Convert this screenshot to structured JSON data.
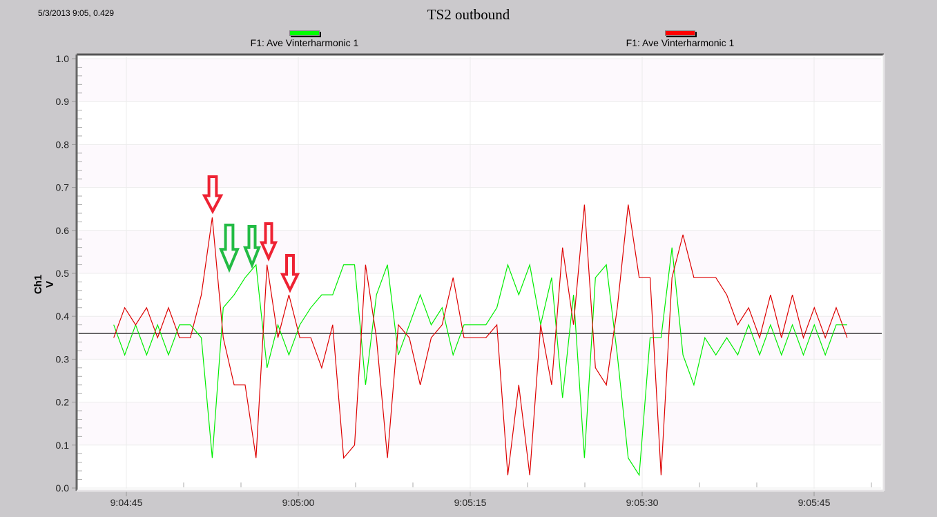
{
  "cursor_readout": "5/3/2013 9:05, 0.429",
  "title": "TS2 outbound",
  "legend": [
    {
      "label": "F1: Ave Vinterharmonic 1",
      "color": "#00ff00"
    },
    {
      "label": "F1: Ave Vinterharmonic 1",
      "color": "#ff0000"
    }
  ],
  "ylabel": "Ch1 V",
  "colors": {
    "background": "#cbc9cc",
    "plot_bg_a": "#ffffff",
    "plot_bg_b": "#fdf9fd",
    "green": "#00ee00",
    "red": "#dd0000",
    "reference_line": "#000000",
    "arrow_red": "#ee2233",
    "arrow_green": "#22bb44"
  },
  "chart_data": {
    "type": "line",
    "title": "TS2 outbound",
    "xlabel": "",
    "ylabel": "Ch1 V",
    "ylim": [
      0.0,
      1.0
    ],
    "yticks": [
      "0.0",
      "0.1",
      "0.2",
      "0.3",
      "0.4",
      "0.5",
      "0.6",
      "0.7",
      "0.8",
      "0.9",
      "1.0"
    ],
    "xticks": [
      "9:04:45",
      "9:05:00",
      "9:05:15",
      "9:05:30",
      "9:05:45"
    ],
    "grid": true,
    "reference_line": 0.36,
    "x_start_seconds_offset": -1.1,
    "x_step_seconds": 0.955,
    "series": [
      {
        "name": "F1: Ave Vinterharmonic 1",
        "color": "#00ee00",
        "values": [
          0.38,
          0.31,
          0.38,
          0.31,
          0.38,
          0.31,
          0.38,
          0.38,
          0.35,
          0.07,
          0.42,
          0.45,
          0.49,
          0.52,
          0.28,
          0.38,
          0.31,
          0.38,
          0.42,
          0.45,
          0.45,
          0.52,
          0.52,
          0.24,
          0.45,
          0.52,
          0.31,
          0.38,
          0.45,
          0.38,
          0.42,
          0.31,
          0.38,
          0.38,
          0.38,
          0.42,
          0.52,
          0.45,
          0.52,
          0.38,
          0.49,
          0.21,
          0.45,
          0.07,
          0.49,
          0.52,
          0.31,
          0.07,
          0.03,
          0.35,
          0.35,
          0.56,
          0.31,
          0.24,
          0.35,
          0.31,
          0.35,
          0.31,
          0.38,
          0.31,
          0.38,
          0.31,
          0.38,
          0.31,
          0.38,
          0.31,
          0.38,
          0.38
        ]
      },
      {
        "name": "F1: Ave Vinterharmonic 1",
        "color": "#dd0000",
        "values": [
          0.35,
          0.42,
          0.38,
          0.42,
          0.35,
          0.42,
          0.35,
          0.35,
          0.45,
          0.63,
          0.35,
          0.24,
          0.24,
          0.07,
          0.52,
          0.35,
          0.45,
          0.35,
          0.35,
          0.28,
          0.38,
          0.07,
          0.1,
          0.52,
          0.35,
          0.07,
          0.38,
          0.35,
          0.24,
          0.35,
          0.38,
          0.49,
          0.35,
          0.35,
          0.35,
          0.38,
          0.03,
          0.24,
          0.03,
          0.38,
          0.24,
          0.56,
          0.38,
          0.66,
          0.28,
          0.24,
          0.42,
          0.66,
          0.49,
          0.49,
          0.03,
          0.49,
          0.59,
          0.49,
          0.49,
          0.49,
          0.45,
          0.38,
          0.42,
          0.35,
          0.45,
          0.35,
          0.45,
          0.35,
          0.42,
          0.35,
          0.42,
          0.35
        ]
      }
    ],
    "annotations": [
      {
        "type": "arrow-down",
        "color": "red",
        "target": "red peak 0.63 near 9:04:53"
      },
      {
        "type": "arrow-down",
        "color": "green",
        "target": "green rise near 9:04:55"
      },
      {
        "type": "arrow-down",
        "color": "green",
        "target": "green peak 0.52 near 9:04:56"
      },
      {
        "type": "arrow-down",
        "color": "red",
        "target": "red peak 0.52 near 9:04:57"
      },
      {
        "type": "arrow-down",
        "color": "red",
        "target": "red peak 0.45 near 9:04:59"
      }
    ]
  }
}
